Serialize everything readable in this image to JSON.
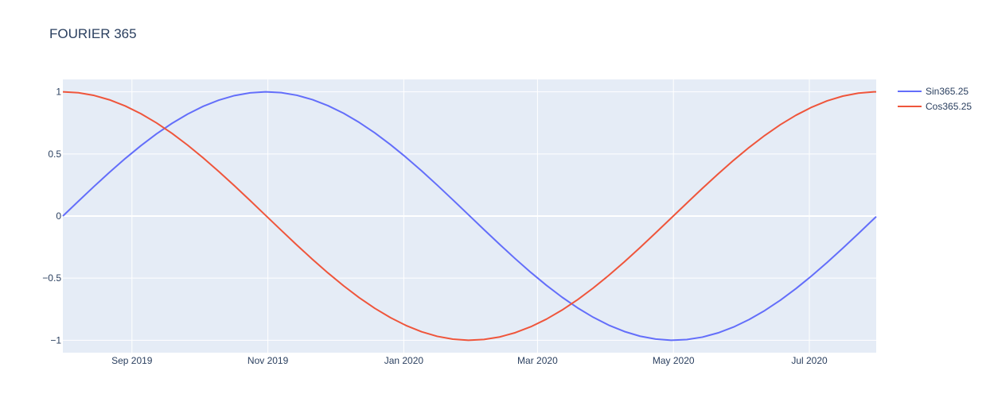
{
  "chart_data": {
    "type": "line",
    "title": "FOURIER 365",
    "xlabel": "",
    "ylabel": "",
    "x_range": [
      "2019-08-01",
      "2020-07-31"
    ],
    "ylim": [
      -1.1,
      1.1
    ],
    "x_ticks": [
      {
        "date": "2019-09-01",
        "label": "Sep 2019"
      },
      {
        "date": "2019-11-01",
        "label": "Nov 2019"
      },
      {
        "date": "2020-01-01",
        "label": "Jan 2020"
      },
      {
        "date": "2020-03-01",
        "label": "Mar 2020"
      },
      {
        "date": "2020-05-01",
        "label": "May 2020"
      },
      {
        "date": "2020-07-01",
        "label": "Jul 2020"
      }
    ],
    "y_ticks": [
      {
        "value": 1,
        "label": "1"
      },
      {
        "value": 0.5,
        "label": "0.5"
      },
      {
        "value": 0,
        "label": "0"
      },
      {
        "value": -0.5,
        "label": "−0.5"
      },
      {
        "value": -1,
        "label": "−1"
      }
    ],
    "grid": true,
    "legend_position": "top-right",
    "period_days": 365.25,
    "sample_step_days": 7,
    "series": [
      {
        "name": "Sin365.25",
        "color": "#636efa",
        "function": "sin"
      },
      {
        "name": "Cos365.25",
        "color": "#EF553B",
        "function": "cos"
      }
    ]
  }
}
